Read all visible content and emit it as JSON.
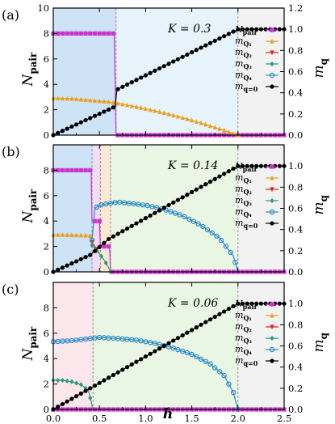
{
  "chart_data": {
    "type": "line",
    "xlabel": "h",
    "x_ticks": [
      "0.0",
      "0.5",
      "1.0",
      "1.5",
      "2.0",
      "2.5"
    ],
    "xlim": [
      0,
      2.5
    ],
    "left_ylabel": "N_pair",
    "left_ylim": [
      0,
      10
    ],
    "right_ylabel": "m_q",
    "right_ylim": [
      0,
      1.2
    ],
    "legend": [
      "N_pair",
      "m_Q1",
      "m_Q2",
      "m_Q3",
      "m_Q4",
      "m_q=0"
    ],
    "colors": {
      "N_pair": "#cc33cc",
      "m_Q1": "#e8a020",
      "m_Q2": "#e02020",
      "m_Q3": "#2a9d7a",
      "m_Q4": "#2b8ac4",
      "m_q=0": "#000000"
    },
    "panels": [
      {
        "label": "(a)",
        "title": "K = 0.3",
        "left_ticks": [
          "0",
          "2",
          "4",
          "6",
          "8",
          "10"
        ],
        "right_ticks": [
          "0.0",
          "0.2",
          "0.4",
          "0.6",
          "0.8",
          "1.0",
          "1.2"
        ],
        "regions": [
          {
            "from": 0,
            "to": 0.68,
            "color": "#cfe3f7"
          },
          {
            "from": 0.68,
            "to": 2.0,
            "color": "#e6f3fb"
          },
          {
            "from": 2.0,
            "to": 2.5,
            "color": "#f2f2f2"
          }
        ],
        "vlines": [
          0.68,
          2.0
        ],
        "series": [
          {
            "name": "N_pair",
            "axis": "left",
            "points": [
              [
                0,
                8
              ],
              [
                0.66,
                8
              ],
              [
                0.68,
                0
              ],
              [
                2.5,
                0
              ]
            ]
          },
          {
            "name": "m_Q1",
            "axis": "right",
            "points": [
              [
                0,
                0.35
              ],
              [
                0.2,
                0.345
              ],
              [
                0.4,
                0.33
              ],
              [
                0.6,
                0.315
              ],
              [
                0.8,
                0.285
              ],
              [
                1.0,
                0.25
              ],
              [
                1.2,
                0.21
              ],
              [
                1.4,
                0.165
              ],
              [
                1.6,
                0.115
              ],
              [
                1.8,
                0.06
              ],
              [
                1.95,
                0.015
              ],
              [
                2.0,
                0
              ]
            ]
          },
          {
            "name": "m_q=0",
            "axis": "right",
            "points": [
              [
                0,
                0
              ],
              [
                0.67,
                0.27
              ],
              [
                0.69,
                0.43
              ],
              [
                2.0,
                1.0
              ],
              [
                2.5,
                1.0
              ]
            ]
          }
        ]
      },
      {
        "label": "(b)",
        "title": "K = 0.14",
        "left_ticks": [
          "0",
          "2",
          "4",
          "6",
          "8"
        ],
        "right_ticks": [
          "0.0",
          "0.2",
          "0.4",
          "0.6",
          "0.8",
          "1.0"
        ],
        "regions": [
          {
            "from": 0,
            "to": 0.42,
            "color": "#cfe3f7"
          },
          {
            "from": 0.42,
            "to": 0.51,
            "color": "#f3dcf5"
          },
          {
            "from": 0.51,
            "to": 0.62,
            "color": "#fbe8d5"
          },
          {
            "from": 0.62,
            "to": 2.0,
            "color": "#eaf6e4"
          },
          {
            "from": 2.0,
            "to": 2.5,
            "color": "#f2f2f2"
          }
        ],
        "vlines": [
          0.42,
          0.51,
          0.62,
          2.0
        ],
        "series": [
          {
            "name": "N_pair",
            "axis": "left",
            "points": [
              [
                0,
                8
              ],
              [
                0.41,
                8
              ],
              [
                0.42,
                4
              ],
              [
                0.5,
                4
              ],
              [
                0.51,
                2
              ],
              [
                0.61,
                2
              ],
              [
                0.62,
                0
              ],
              [
                2.5,
                0
              ]
            ]
          },
          {
            "name": "m_Q1",
            "axis": "right",
            "points": [
              [
                0,
                0.35
              ],
              [
                0.1,
                0.35
              ],
              [
                0.2,
                0.348
              ],
              [
                0.3,
                0.346
              ],
              [
                0.38,
                0.343
              ],
              [
                0.4,
                0.34
              ]
            ]
          },
          {
            "name": "m_Q2",
            "axis": "right",
            "points": [
              [
                0.42,
                0.28
              ],
              [
                0.46,
                0.23
              ],
              [
                0.5,
                0.17
              ]
            ]
          },
          {
            "name": "m_Q3",
            "axis": "right",
            "points": [
              [
                0.42,
                0.25
              ],
              [
                0.47,
                0.2
              ],
              [
                0.51,
                0.16
              ],
              [
                0.56,
                0.1
              ],
              [
                0.6,
                0.04
              ],
              [
                0.62,
                0
              ]
            ]
          },
          {
            "name": "m_Q4",
            "axis": "right",
            "points": [
              [
                0.42,
                0.3
              ],
              [
                0.45,
                0.6
              ],
              [
                0.5,
                0.63
              ],
              [
                0.6,
                0.645
              ],
              [
                0.7,
                0.66
              ],
              [
                0.8,
                0.65
              ],
              [
                1.0,
                0.63
              ],
              [
                1.2,
                0.59
              ],
              [
                1.4,
                0.53
              ],
              [
                1.6,
                0.44
              ],
              [
                1.8,
                0.32
              ],
              [
                1.95,
                0.15
              ],
              [
                2.0,
                0
              ]
            ]
          },
          {
            "name": "m_q=0",
            "axis": "right",
            "points": [
              [
                0,
                0
              ],
              [
                0.4,
                0.16
              ],
              [
                0.6,
                0.31
              ],
              [
                2.0,
                1.0
              ],
              [
                2.5,
                1.0
              ]
            ]
          }
        ]
      },
      {
        "label": "(c)",
        "title": "K = 0.06",
        "left_ticks": [
          "0",
          "2",
          "4",
          "6",
          "8"
        ],
        "right_ticks": [
          "0.0",
          "0.2",
          "0.4",
          "0.6",
          "0.8",
          "1.0"
        ],
        "regions": [
          {
            "from": 0,
            "to": 0.43,
            "color": "#fbe6ec"
          },
          {
            "from": 0.43,
            "to": 2.0,
            "color": "#eaf6e4"
          },
          {
            "from": 2.0,
            "to": 2.5,
            "color": "#f2f2f2"
          }
        ],
        "vlines": [
          0.43,
          2.0
        ],
        "series": [
          {
            "name": "N_pair",
            "axis": "left",
            "points": [
              [
                0,
                0
              ],
              [
                2.5,
                0
              ]
            ]
          },
          {
            "name": "m_Q3",
            "axis": "right",
            "points": [
              [
                0,
                0.275
              ],
              [
                0.1,
                0.275
              ],
              [
                0.2,
                0.262
              ],
              [
                0.3,
                0.235
              ],
              [
                0.38,
                0.18
              ],
              [
                0.43,
                0
              ]
            ]
          },
          {
            "name": "m_Q4",
            "axis": "right",
            "points": [
              [
                0,
                0.64
              ],
              [
                0.2,
                0.65
              ],
              [
                0.4,
                0.67
              ],
              [
                0.5,
                0.68
              ],
              [
                0.7,
                0.67
              ],
              [
                0.9,
                0.655
              ],
              [
                1.1,
                0.625
              ],
              [
                1.3,
                0.58
              ],
              [
                1.5,
                0.52
              ],
              [
                1.7,
                0.43
              ],
              [
                1.85,
                0.32
              ],
              [
                1.95,
                0.16
              ],
              [
                2.0,
                0
              ]
            ]
          },
          {
            "name": "m_q=0",
            "axis": "right",
            "points": [
              [
                0,
                0
              ],
              [
                2.0,
                1.0
              ],
              [
                2.5,
                1.0
              ]
            ]
          }
        ]
      }
    ]
  }
}
